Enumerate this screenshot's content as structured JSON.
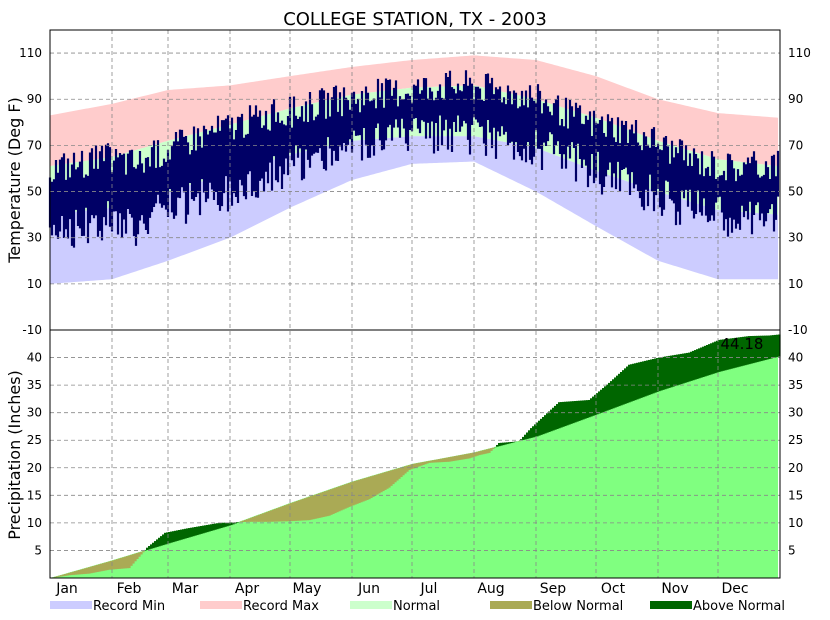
{
  "chart_data": {
    "type": "area",
    "title": "COLLEGE STATION, TX - 2003",
    "months": [
      "Jan",
      "Feb",
      "Mar",
      "Apr",
      "May",
      "Jun",
      "Jul",
      "Aug",
      "Sep",
      "Oct",
      "Nov",
      "Dec"
    ],
    "temperature": {
      "ylabel": "Temperature (Deg F)",
      "ylim": [
        -10,
        120
      ],
      "ticks": [
        -10,
        10,
        30,
        50,
        70,
        90,
        110
      ],
      "normal": {
        "days": [
          1,
          32,
          60,
          91,
          121,
          152,
          182,
          213,
          244,
          274,
          305,
          335,
          365
        ],
        "low": [
          40,
          43,
          50,
          58,
          66,
          72,
          74,
          74,
          69,
          59,
          50,
          42,
          40
        ],
        "high": [
          61,
          65,
          72,
          79,
          86,
          92,
          95,
          96,
          90,
          82,
          72,
          64,
          61
        ]
      },
      "record": {
        "days": [
          1,
          32,
          60,
          91,
          121,
          152,
          182,
          213,
          244,
          274,
          305,
          335,
          365
        ],
        "min": [
          10,
          12,
          20,
          30,
          43,
          55,
          62,
          63,
          50,
          35,
          20,
          12,
          12
        ],
        "max": [
          83,
          88,
          94,
          96,
          100,
          104,
          107,
          109,
          107,
          100,
          90,
          84,
          82
        ]
      },
      "observed": {
        "days": [
          1,
          15,
          30,
          45,
          60,
          75,
          90,
          105,
          120,
          135,
          150,
          165,
          180,
          195,
          210,
          225,
          240,
          255,
          270,
          285,
          300,
          315,
          330,
          345,
          365
        ],
        "low": [
          36,
          34,
          38,
          35,
          42,
          46,
          50,
          56,
          60,
          64,
          68,
          72,
          73,
          74,
          74,
          73,
          70,
          66,
          60,
          55,
          50,
          44,
          42,
          38,
          40
        ],
        "high": [
          60,
          62,
          64,
          62,
          68,
          74,
          78,
          82,
          84,
          88,
          90,
          92,
          94,
          96,
          96,
          94,
          92,
          86,
          80,
          78,
          74,
          66,
          62,
          60,
          62
        ]
      }
    },
    "precipitation": {
      "ylabel": "Precipitation (Inches)",
      "ylim": [
        0,
        45
      ],
      "ticks": [
        5,
        10,
        15,
        20,
        25,
        30,
        35,
        40
      ],
      "annotation": "44.18",
      "normal_cumulative": {
        "days": [
          1,
          32,
          60,
          91,
          121,
          152,
          182,
          213,
          244,
          274,
          305,
          335,
          365
        ],
        "values": [
          0,
          3.2,
          6.3,
          9.6,
          13.6,
          17.5,
          20.7,
          22.8,
          25.7,
          29.7,
          33.9,
          37.4,
          40.2
        ]
      },
      "observed_cumulative": {
        "days": [
          1,
          10,
          20,
          30,
          40,
          49,
          58,
          69,
          85,
          100,
          110,
          120,
          130,
          140,
          150,
          160,
          170,
          180,
          190,
          200,
          210,
          215,
          220,
          225,
          235,
          241,
          255,
          270,
          280,
          290,
          305,
          320,
          335,
          350,
          360,
          365
        ],
        "values": [
          0,
          0.5,
          0.8,
          1.5,
          1.8,
          5.5,
          8.2,
          9.0,
          10.0,
          10.2,
          10.2,
          10.3,
          10.5,
          11.3,
          12.9,
          14.3,
          16.4,
          19.6,
          20.9,
          21.1,
          21.7,
          22.3,
          22.7,
          24.5,
          24.8,
          27.2,
          31.9,
          32.3,
          35.4,
          38.7,
          40.0,
          40.9,
          43.2,
          43.9,
          44.0,
          44.18
        ]
      }
    },
    "legend": [
      {
        "label": "Record Min",
        "color": "#ccccff"
      },
      {
        "label": "Record Max",
        "color": "#ffcccc"
      },
      {
        "label": "Normal",
        "color": "#ccffcc"
      },
      {
        "label": "Below Normal",
        "color": "#aaaa55"
      },
      {
        "label": "Above Normal",
        "color": "#006600"
      }
    ],
    "colors": {
      "observed_temperature": "#000066",
      "normal_precip": "#80ff80"
    },
    "grid": true
  }
}
